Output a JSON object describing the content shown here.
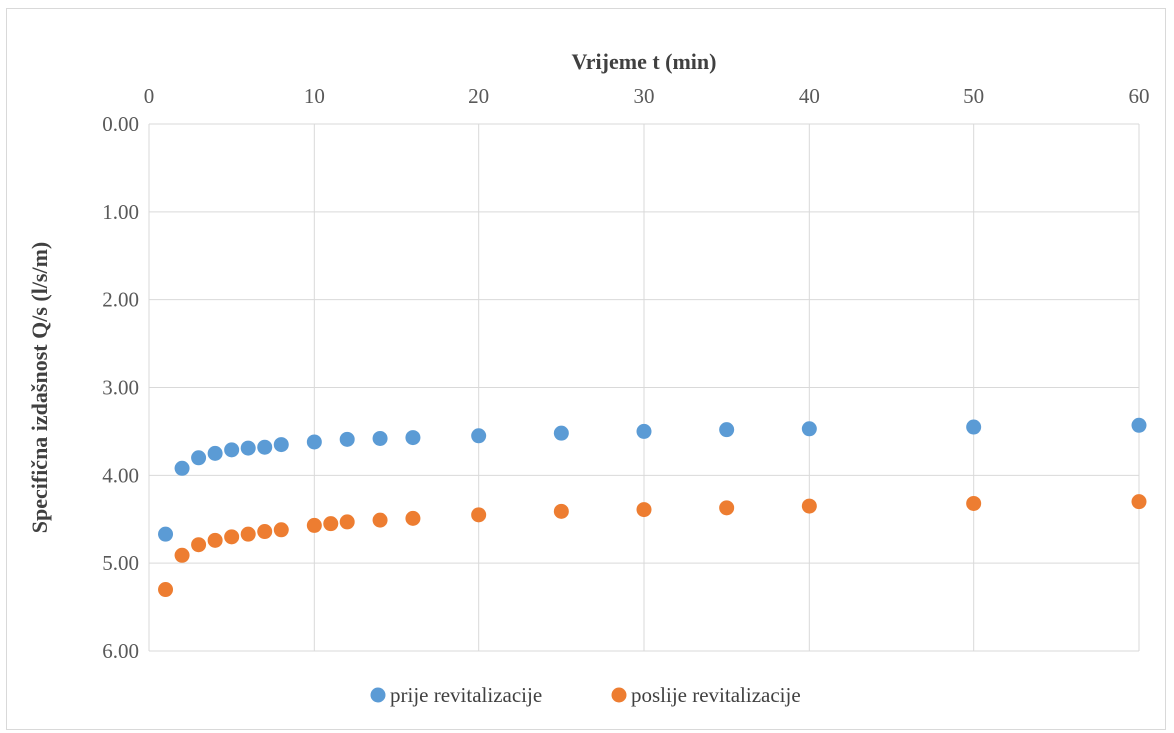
{
  "chart_data": {
    "type": "scatter",
    "title": "",
    "xlabel": "Vrijeme t (min)",
    "ylabel": "Specifična izdašnost Q/s (l/s/m)",
    "xlim": [
      0,
      60
    ],
    "ylim": [
      0,
      6
    ],
    "y_inverted": true,
    "x_axis_position": "top",
    "x_scale": "custom-segmented",
    "x_ticks": [
      0,
      10,
      20,
      30,
      40,
      50,
      60
    ],
    "x_tick_labels": [
      "0",
      "10",
      "20",
      "30",
      "40",
      "50",
      "60"
    ],
    "y_ticks": [
      0,
      1,
      2,
      3,
      4,
      5,
      6
    ],
    "y_tick_labels": [
      "0.00",
      "1.00",
      "2.00",
      "3.00",
      "4.00",
      "5.00",
      "6.00"
    ],
    "grid": true,
    "legend_position": "bottom",
    "series": [
      {
        "name": "prije revitalizacije",
        "color": "#5b9bd5",
        "points": [
          {
            "x": 1,
            "y": 4.67
          },
          {
            "x": 2,
            "y": 3.92
          },
          {
            "x": 3,
            "y": 3.8
          },
          {
            "x": 4,
            "y": 3.75
          },
          {
            "x": 5,
            "y": 3.71
          },
          {
            "x": 6,
            "y": 3.69
          },
          {
            "x": 7,
            "y": 3.68
          },
          {
            "x": 8,
            "y": 3.65
          },
          {
            "x": 10,
            "y": 3.62
          },
          {
            "x": 12,
            "y": 3.59
          },
          {
            "x": 14,
            "y": 3.58
          },
          {
            "x": 16,
            "y": 3.57
          },
          {
            "x": 20,
            "y": 3.55
          },
          {
            "x": 25,
            "y": 3.52
          },
          {
            "x": 30,
            "y": 3.5
          },
          {
            "x": 35,
            "y": 3.48
          },
          {
            "x": 40,
            "y": 3.47
          },
          {
            "x": 50,
            "y": 3.45
          },
          {
            "x": 60,
            "y": 3.43
          }
        ]
      },
      {
        "name": "poslije revitalizacije",
        "color": "#ed7d31",
        "points": [
          {
            "x": 1,
            "y": 5.3
          },
          {
            "x": 2,
            "y": 4.91
          },
          {
            "x": 3,
            "y": 4.79
          },
          {
            "x": 4,
            "y": 4.74
          },
          {
            "x": 5,
            "y": 4.7
          },
          {
            "x": 6,
            "y": 4.67
          },
          {
            "x": 7,
            "y": 4.64
          },
          {
            "x": 8,
            "y": 4.62
          },
          {
            "x": 10,
            "y": 4.57
          },
          {
            "x": 11,
            "y": 4.55
          },
          {
            "x": 12,
            "y": 4.53
          },
          {
            "x": 14,
            "y": 4.51
          },
          {
            "x": 16,
            "y": 4.49
          },
          {
            "x": 20,
            "y": 4.45
          },
          {
            "x": 25,
            "y": 4.41
          },
          {
            "x": 30,
            "y": 4.39
          },
          {
            "x": 35,
            "y": 4.37
          },
          {
            "x": 40,
            "y": 4.35
          },
          {
            "x": 50,
            "y": 4.32
          },
          {
            "x": 60,
            "y": 4.3
          }
        ]
      }
    ]
  }
}
